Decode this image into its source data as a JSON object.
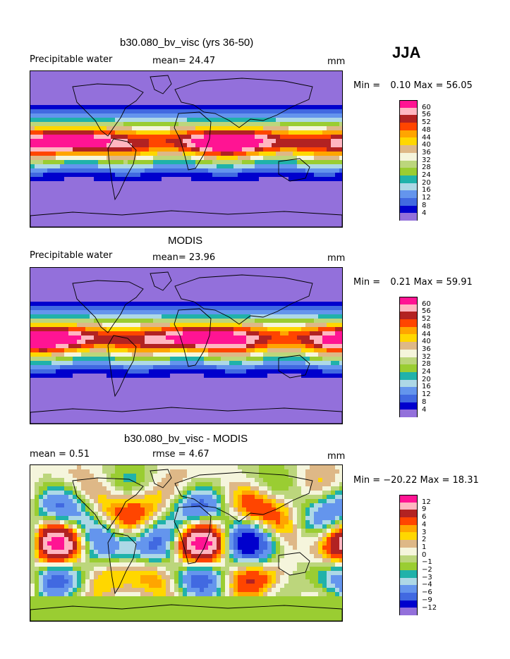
{
  "season": "JJA",
  "colors": {
    "abs": [
      "#9370db",
      "#0000cd",
      "#4169e1",
      "#6495ed",
      "#add8e6",
      "#20b2aa",
      "#9acd32",
      "#bcd67c",
      "#f5f5dc",
      "#deb887",
      "#ffd700",
      "#ffa500",
      "#ff4500",
      "#b22222",
      "#ffb6c1",
      "#ff1493"
    ],
    "diff": [
      "#9370db",
      "#0000cd",
      "#4169e1",
      "#6495ed",
      "#add8e6",
      "#20b2aa",
      "#9acd32",
      "#bcd67c",
      "#f5f5dc",
      "#deb887",
      "#ffd700",
      "#ffa500",
      "#ff4500",
      "#b22222",
      "#ffb6c1",
      "#ff1493"
    ]
  },
  "panels": [
    {
      "title": "b30.080_bv_visc (yrs 36-50)",
      "left_label": "Precipitable water",
      "mid_label": "mean=  24.47",
      "right_label": "mm",
      "min_label": "Min =",
      "min_value": "0.10",
      "max_label": "Max =",
      "max_value": "56.05",
      "levels": [
        "60",
        "56",
        "52",
        "48",
        "44",
        "40",
        "36",
        "32",
        "28",
        "24",
        "20",
        "16",
        "12",
        "8",
        "4"
      ],
      "palette": "abs"
    },
    {
      "title": "MODIS",
      "left_label": "Precipitable water",
      "mid_label": "mean=  23.96",
      "right_label": "mm",
      "min_label": "Min =",
      "min_value": "0.21",
      "max_label": "Max =",
      "max_value": "59.91",
      "levels": [
        "60",
        "56",
        "52",
        "48",
        "44",
        "40",
        "36",
        "32",
        "28",
        "24",
        "20",
        "16",
        "12",
        "8",
        "4"
      ],
      "palette": "abs"
    },
    {
      "title": "b30.080_bv_visc - MODIS",
      "left_label": "mean =   0.51",
      "mid_label": "rmse =   4.67",
      "right_label": "mm",
      "min_label": "Min =",
      "min_value": "−20.22",
      "max_label": "Max =",
      "max_value": "18.31",
      "levels": [
        "12",
        "9",
        "6",
        "4",
        "3",
        "2",
        "1",
        "0",
        "−1",
        "−2",
        "−3",
        "−4",
        "−6",
        "−9",
        "−12"
      ],
      "palette": "diff"
    }
  ],
  "chart_data": [
    {
      "type": "heatmap",
      "title": "b30.080_bv_visc (yrs 36-50)",
      "variable": "Precipitable water",
      "units": "mm",
      "mean": 24.47,
      "min": 0.1,
      "max": 56.05,
      "contour_levels": [
        4,
        8,
        12,
        16,
        20,
        24,
        28,
        32,
        36,
        40,
        44,
        48,
        52,
        56,
        60
      ]
    },
    {
      "type": "heatmap",
      "title": "MODIS",
      "variable": "Precipitable water",
      "units": "mm",
      "mean": 23.96,
      "min": 0.21,
      "max": 59.91,
      "contour_levels": [
        4,
        8,
        12,
        16,
        20,
        24,
        28,
        32,
        36,
        40,
        44,
        48,
        52,
        56,
        60
      ]
    },
    {
      "type": "heatmap",
      "title": "b30.080_bv_visc - MODIS",
      "units": "mm",
      "mean": 0.51,
      "rmse": 4.67,
      "min": -20.22,
      "max": 18.31,
      "contour_levels": [
        -12,
        -9,
        -6,
        -4,
        -3,
        -2,
        -1,
        0,
        1,
        2,
        3,
        4,
        6,
        9,
        12
      ]
    }
  ]
}
